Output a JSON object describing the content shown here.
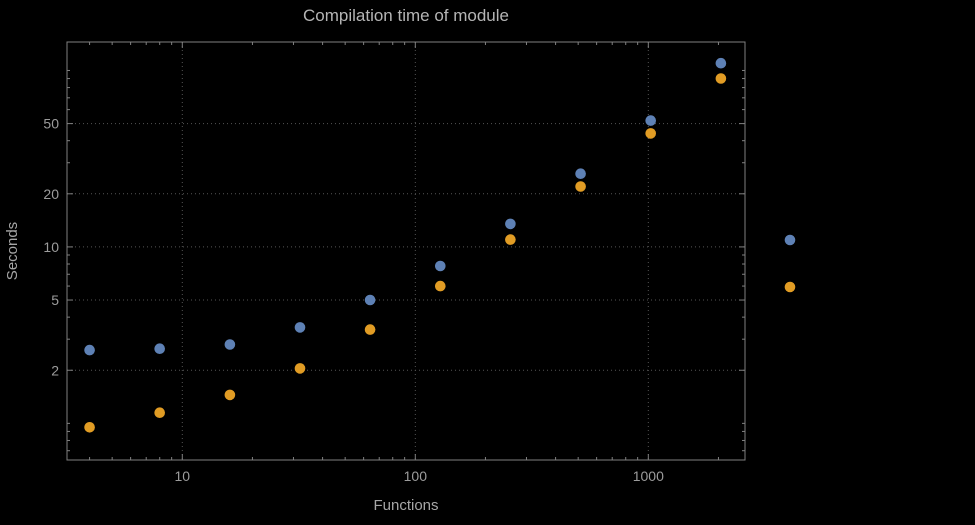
{
  "title": "Compilation time of module",
  "chart_data": {
    "type": "scatter",
    "title": "Compilation time of module",
    "xlabel": "Functions",
    "ylabel": "Seconds",
    "x_scale": "log",
    "y_scale": "log",
    "xlim": [
      3.2,
      2600
    ],
    "ylim": [
      0.62,
      145
    ],
    "x_ticks": [
      10,
      100,
      1000
    ],
    "x_tick_labels": [
      "10",
      "100",
      "1000"
    ],
    "y_ticks": [
      2,
      5,
      10,
      20,
      50
    ],
    "y_tick_labels": [
      "2",
      "5",
      "10",
      "20",
      "50"
    ],
    "grid": {
      "style": "dotted",
      "x_lines": [
        10,
        100,
        1000
      ],
      "y_lines": [
        2,
        5,
        10,
        20,
        50
      ]
    },
    "legend_position": "right",
    "series": [
      {
        "name": "blue",
        "marker": "circle",
        "color": "#5e81b5",
        "points": [
          [
            4,
            2.6
          ],
          [
            8,
            2.65
          ],
          [
            16,
            2.8
          ],
          [
            32,
            3.5
          ],
          [
            64,
            5.0
          ],
          [
            128,
            7.8
          ],
          [
            256,
            13.5
          ],
          [
            512,
            26
          ],
          [
            1024,
            52
          ],
          [
            2048,
            110
          ]
        ]
      },
      {
        "name": "orange",
        "marker": "circle",
        "color": "#e19c24",
        "points": [
          [
            4,
            0.95
          ],
          [
            8,
            1.15
          ],
          [
            16,
            1.45
          ],
          [
            32,
            2.05
          ],
          [
            64,
            3.4
          ],
          [
            128,
            6.0
          ],
          [
            256,
            11
          ],
          [
            512,
            22
          ],
          [
            1024,
            44
          ],
          [
            2048,
            90
          ]
        ]
      }
    ]
  },
  "colors": {
    "background": "#000000",
    "frame": "#808080",
    "grid": "#555555",
    "tick_label": "#9c9c9c",
    "axis_label": "#a6a6a6",
    "title": "#b5b5b5"
  }
}
